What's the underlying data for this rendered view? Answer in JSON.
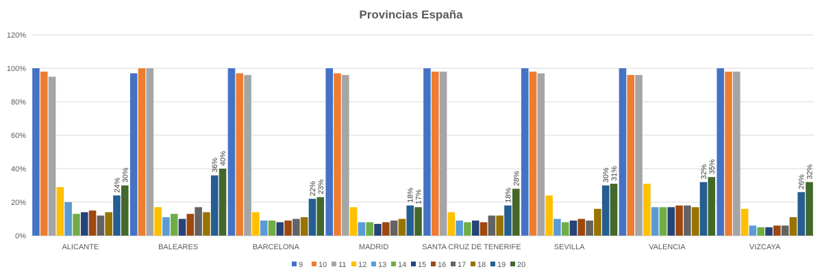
{
  "chart_data": {
    "type": "bar",
    "title": "Provincias España",
    "xlabel": "",
    "ylabel": "",
    "ylim": [
      0,
      120
    ],
    "yticks": [
      "0%",
      "20%",
      "40%",
      "60%",
      "80%",
      "100%",
      "120%"
    ],
    "grid": true,
    "legend_position": "bottom",
    "categories": [
      "ALICANTE",
      "BALEARES",
      "BARCELONA",
      "MADRID",
      "SANTA CRUZ DE TENERIFE",
      "SEVILLA",
      "VALENCIA",
      "VIZCAYA"
    ],
    "series": [
      {
        "name": "9",
        "color": "#4472C4",
        "values": [
          100,
          97,
          100,
          100,
          100,
          100,
          100,
          100
        ]
      },
      {
        "name": "10",
        "color": "#ED7D31",
        "values": [
          98,
          100,
          97,
          97,
          98,
          98,
          96,
          98
        ]
      },
      {
        "name": "11",
        "color": "#A5A5A5",
        "values": [
          95,
          100,
          96,
          96,
          98,
          97,
          96,
          98
        ]
      },
      {
        "name": "12",
        "color": "#FFC000",
        "values": [
          29,
          17,
          14,
          17,
          14,
          24,
          31,
          16
        ]
      },
      {
        "name": "13",
        "color": "#5B9BD5",
        "values": [
          20,
          11,
          9,
          8,
          9,
          10,
          17,
          6
        ]
      },
      {
        "name": "14",
        "color": "#70AD47",
        "values": [
          13,
          13,
          9,
          8,
          8,
          8,
          17,
          5
        ]
      },
      {
        "name": "15",
        "color": "#264478",
        "values": [
          14,
          10,
          8,
          7,
          9,
          9,
          17,
          5
        ]
      },
      {
        "name": "16",
        "color": "#9E480E",
        "values": [
          15,
          13,
          9,
          8,
          8,
          10,
          18,
          6
        ]
      },
      {
        "name": "17",
        "color": "#636363",
        "values": [
          12,
          17,
          10,
          9,
          12,
          9,
          18,
          6
        ]
      },
      {
        "name": "18",
        "color": "#997300",
        "values": [
          14,
          14,
          11,
          10,
          12,
          16,
          17,
          11
        ]
      },
      {
        "name": "19",
        "color": "#255E91",
        "values": [
          24,
          36,
          22,
          18,
          18,
          30,
          32,
          26
        ]
      },
      {
        "name": "20",
        "color": "#43682B",
        "values": [
          30,
          40,
          23,
          17,
          28,
          31,
          35,
          32
        ]
      }
    ],
    "data_labels": {
      "series": [
        "19",
        "20"
      ],
      "values": [
        [
          "24%",
          "30%"
        ],
        [
          "36%",
          "40%"
        ],
        [
          "22%",
          "23%"
        ],
        [
          "18%",
          "17%"
        ],
        [
          "18%",
          "28%"
        ],
        [
          "30%",
          "31%"
        ],
        [
          "32%",
          "35%"
        ],
        [
          "26%",
          "32%"
        ]
      ]
    }
  }
}
